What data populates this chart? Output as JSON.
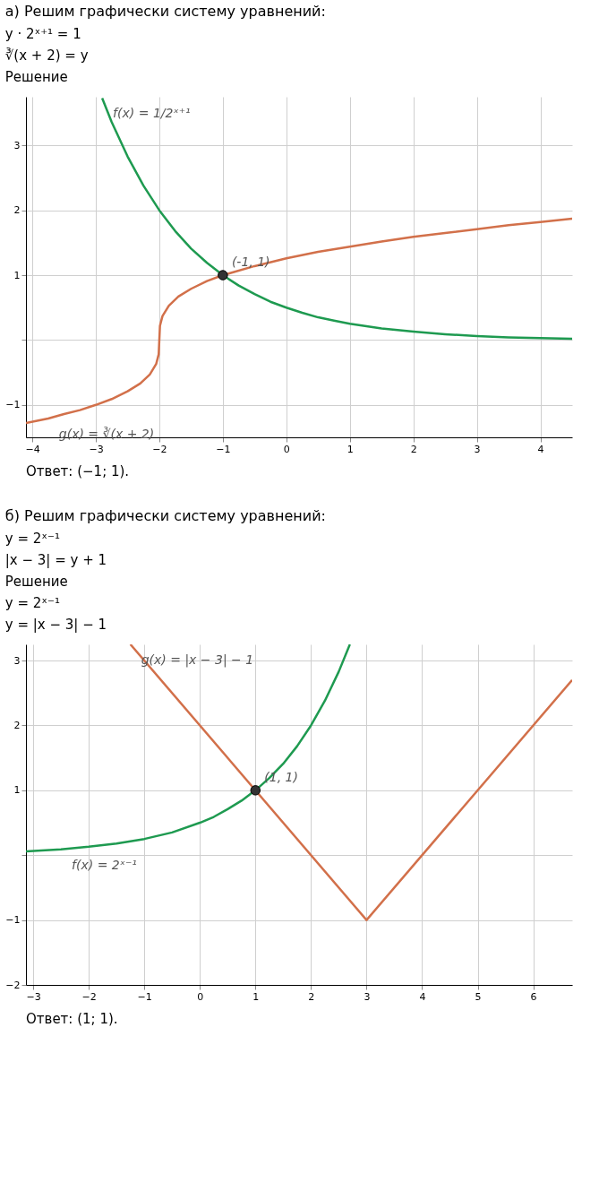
{
  "chart_data": [
    {
      "type": "line",
      "title": "а) Решим графически систему уравнений:",
      "subtitle": "y · 2ˣ⁺¹ = 1\n∛(x + 2) = y\nРешение",
      "xlim": [
        -4.1,
        4.5
      ],
      "ylim": [
        -1.5,
        3.75
      ],
      "xticks": [
        -4,
        -3,
        -2,
        -1,
        0,
        1,
        2,
        3,
        4
      ],
      "yticks": [
        -1,
        {
          "value": 0,
          "label": null
        },
        1,
        2,
        3
      ],
      "grid": true,
      "series": [
        {
          "color": "#1e9a50",
          "x": [
            -2.9,
            -2.75,
            -2.5,
            -2.25,
            -2,
            -1.75,
            -1.5,
            -1.25,
            -1,
            -0.75,
            -0.5,
            -0.25,
            0,
            0.25,
            0.5,
            0.75,
            1,
            1.5,
            2,
            2.5,
            3,
            3.5,
            4,
            4.5
          ],
          "values": [
            3.73,
            3.36,
            2.83,
            2.38,
            2,
            1.68,
            1.41,
            1.19,
            1,
            0.84,
            0.71,
            0.59,
            0.5,
            0.42,
            0.35,
            0.3,
            0.25,
            0.18,
            0.13,
            0.09,
            0.06,
            0.04,
            0.03,
            0.02
          ]
        },
        {
          "color": "#d2704a",
          "x": [
            -4.1,
            -3.75,
            -3.5,
            -3.25,
            -3,
            -2.75,
            -2.5,
            -2.3,
            -2.15,
            -2.05,
            -2.01,
            -2,
            -1.99,
            -1.95,
            -1.85,
            -1.7,
            -1.5,
            -1.25,
            -1,
            -0.5,
            0,
            0.5,
            1,
            1.5,
            2,
            2.5,
            3,
            3.5,
            4,
            4.5
          ],
          "values": [
            -1.28,
            -1.21,
            -1.14,
            -1.08,
            -1,
            -0.91,
            -0.79,
            -0.67,
            -0.53,
            -0.37,
            -0.22,
            0,
            0.22,
            0.37,
            0.53,
            0.67,
            0.79,
            0.91,
            1,
            1.14,
            1.26,
            1.36,
            1.44,
            1.52,
            1.59,
            1.65,
            1.71,
            1.77,
            1.82,
            1.87
          ]
        },
        {
          "type": "scatter",
          "marker": "circle",
          "color": "#333333",
          "x": [
            -1
          ],
          "values": [
            1
          ]
        }
      ],
      "annotations": [
        {
          "text": "f(x) = 1/2ˣ⁺¹",
          "x": -2.9,
          "y": 3.73
        },
        {
          "text": "g(x) = ∛(x + 2)",
          "x": -3.75,
          "y": -1.21
        },
        {
          "text": "(-1, 1)",
          "x": -1,
          "y": 1
        },
        "Ответ: (−1; 1)."
      ]
    },
    {
      "type": "line",
      "title": "б) Решим графически систему уравнений:",
      "subtitle": "y = 2ˣ⁻¹\n|x − 3| = y + 1\nРешение\ny = 2ˣ⁻¹\ny = |x − 3| − 1",
      "xlim": [
        -3.13,
        6.7
      ],
      "ylim": [
        -2,
        3.25
      ],
      "xticks": [
        -3,
        -2,
        -1,
        0,
        1,
        2,
        3,
        4,
        5,
        6
      ],
      "yticks": [
        -2,
        -1,
        {
          "value": 0,
          "label": null
        },
        1,
        2,
        3
      ],
      "grid": true,
      "series": [
        {
          "color": "#1e9a50",
          "x": [
            -3.13,
            -2.5,
            -2,
            -1.5,
            -1,
            -0.5,
            0,
            0.25,
            0.5,
            0.75,
            1,
            1.25,
            1.5,
            1.75,
            2,
            2.25,
            2.5,
            2.7
          ],
          "values": [
            0.06,
            0.09,
            0.13,
            0.18,
            0.25,
            0.35,
            0.5,
            0.59,
            0.71,
            0.84,
            1,
            1.19,
            1.41,
            1.68,
            2,
            2.38,
            2.83,
            3.25
          ]
        },
        {
          "color": "#d2704a",
          "x": [
            -1.25,
            3,
            6.7
          ],
          "values": [
            3.25,
            -1,
            2.7
          ]
        },
        {
          "type": "scatter",
          "marker": "circle",
          "color": "#333333",
          "x": [
            1
          ],
          "values": [
            1
          ]
        }
      ],
      "annotations": [
        {
          "text": "g(x) = |x − 3| − 1",
          "x": -1.25,
          "y": 3.25
        },
        {
          "text": "f(x) = 2ˣ⁻¹",
          "x": -2.5,
          "y": 0.09
        },
        {
          "text": "(1, 1)",
          "x": 1,
          "y": 1
        },
        "Ответ: (1; 1)."
      ]
    }
  ]
}
